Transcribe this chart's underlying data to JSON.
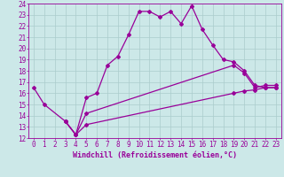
{
  "xlabel": "Windchill (Refroidissement éolien,°C)",
  "bg_color": "#cce8e8",
  "line_color": "#990099",
  "grid_color": "#aacccc",
  "xlim": [
    -0.5,
    23.5
  ],
  "ylim": [
    12,
    24
  ],
  "xticks": [
    0,
    1,
    2,
    3,
    4,
    5,
    6,
    7,
    8,
    9,
    10,
    11,
    12,
    13,
    14,
    15,
    16,
    17,
    18,
    19,
    20,
    21,
    22,
    23
  ],
  "yticks": [
    12,
    13,
    14,
    15,
    16,
    17,
    18,
    19,
    20,
    21,
    22,
    23,
    24
  ],
  "line1_x": [
    0,
    1,
    3,
    4,
    5,
    6,
    7,
    8,
    9,
    10,
    11,
    12,
    13,
    14,
    15,
    16,
    17,
    18,
    19,
    20,
    21,
    22,
    23
  ],
  "line1_y": [
    16.5,
    15.0,
    13.5,
    12.3,
    15.6,
    16.0,
    18.5,
    19.3,
    21.2,
    23.3,
    23.3,
    22.8,
    23.3,
    22.2,
    23.8,
    21.7,
    20.3,
    19.0,
    18.8,
    18.0,
    16.7,
    16.5,
    16.5
  ],
  "line2_x": [
    3,
    4,
    5,
    19,
    20,
    21,
    22,
    23
  ],
  "line2_y": [
    13.5,
    12.3,
    14.2,
    18.5,
    17.8,
    16.5,
    16.7,
    16.7
  ],
  "line3_x": [
    3,
    4,
    5,
    19,
    20,
    21,
    22,
    23
  ],
  "line3_y": [
    13.5,
    12.3,
    13.2,
    16.0,
    16.2,
    16.3,
    16.5,
    16.5
  ],
  "marker": "D",
  "markersize": 2,
  "linewidth": 0.9,
  "xlabel_fontsize": 6,
  "tick_fontsize": 5.5
}
